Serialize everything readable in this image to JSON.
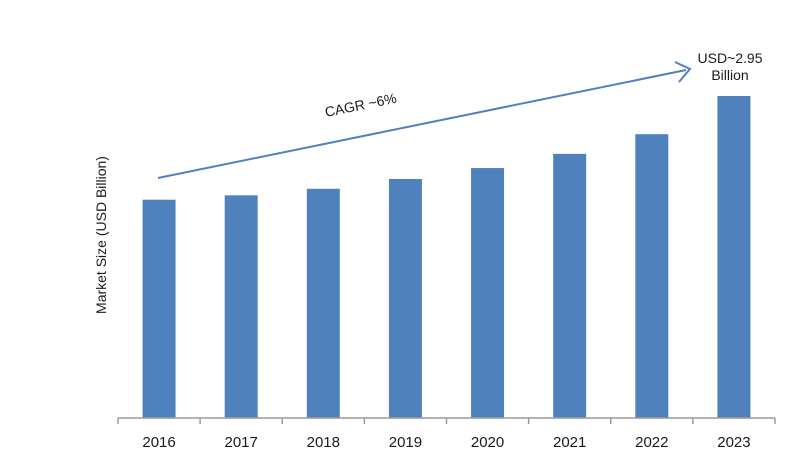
{
  "chart_data": {
    "type": "bar",
    "categories": [
      "2016",
      "2017",
      "2018",
      "2019",
      "2020",
      "2021",
      "2022",
      "2023"
    ],
    "values": [
      2.0,
      2.04,
      2.1,
      2.19,
      2.29,
      2.42,
      2.6,
      2.95
    ],
    "ylabel": "Market Size (USD Billion)",
    "xlabel": "",
    "ylim": [
      0,
      3.2
    ],
    "grid": false,
    "bar_color": "#4f81bd",
    "annotations": {
      "cagr": "CAGR ~6%",
      "end_value_line1": "USD~2.95",
      "end_value_line2": "Billion"
    }
  }
}
